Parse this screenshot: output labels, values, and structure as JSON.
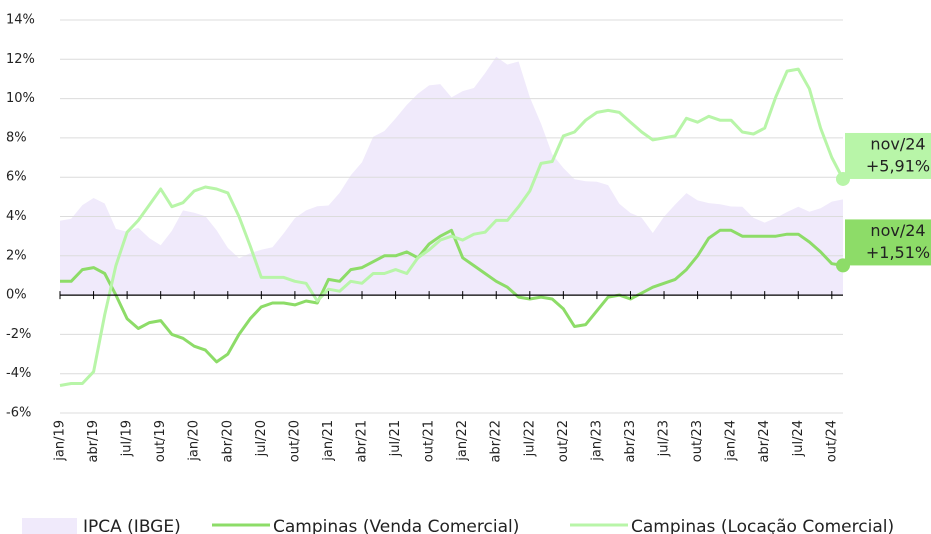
{
  "chart_data": {
    "type": "line",
    "categories": [
      "jan/19",
      null,
      null,
      "abr/19",
      null,
      null,
      "jul/19",
      null,
      null,
      "out/19",
      null,
      null,
      "jan/20",
      null,
      null,
      "abr/20",
      null,
      null,
      "jul/20",
      null,
      null,
      "out/20",
      null,
      null,
      "jan/21",
      null,
      null,
      "abr/21",
      null,
      null,
      "jul/21",
      null,
      null,
      "out/21",
      null,
      null,
      "jan/22",
      null,
      null,
      "abr/22",
      null,
      null,
      "jul/22",
      null,
      null,
      "out/22",
      null,
      null,
      "jan/23",
      null,
      null,
      "abr/23",
      null,
      null,
      "jul/23",
      null,
      null,
      "out/23",
      null,
      null,
      "jan/24",
      null,
      null,
      "abr/24",
      null,
      null,
      "jul/24",
      null,
      null,
      "out/24",
      null
    ],
    "series": [
      {
        "name": "IPCA (IBGE)",
        "kind": "area",
        "color": "#f0eafb",
        "values": [
          3.78,
          3.89,
          4.58,
          4.94,
          4.66,
          3.37,
          3.22,
          3.43,
          2.89,
          2.54,
          3.27,
          4.31,
          4.19,
          4.01,
          3.3,
          2.4,
          1.88,
          2.13,
          2.31,
          2.44,
          3.14,
          3.92,
          4.31,
          4.52,
          4.56,
          5.2,
          6.1,
          6.76,
          8.06,
          8.35,
          8.99,
          9.68,
          10.25,
          10.67,
          10.74,
          10.06,
          10.38,
          10.54,
          11.3,
          12.13,
          11.73,
          11.89,
          10.07,
          8.73,
          7.17,
          6.47,
          5.9,
          5.79,
          5.77,
          5.6,
          4.65,
          4.18,
          3.94,
          3.16,
          3.99,
          4.61,
          5.19,
          4.82,
          4.68,
          4.62,
          4.51,
          4.5,
          3.93,
          3.69,
          3.93,
          4.23,
          4.5,
          4.24,
          4.42,
          4.76,
          4.87
        ]
      },
      {
        "name": "Campinas (Venda Comercial)",
        "kind": "line",
        "color": "#8ddc68",
        "values": [
          0.7,
          0.7,
          1.3,
          1.4,
          1.1,
          0.0,
          -1.2,
          -1.7,
          -1.4,
          -1.3,
          -2.0,
          -2.2,
          -2.6,
          -2.8,
          -3.4,
          -3.0,
          -2.0,
          -1.2,
          -0.6,
          -0.4,
          -0.4,
          -0.5,
          -0.3,
          -0.4,
          0.8,
          0.7,
          1.3,
          1.4,
          1.7,
          2.0,
          2.0,
          2.2,
          1.9,
          2.6,
          3.0,
          3.3,
          1.9,
          1.5,
          1.1,
          0.7,
          0.4,
          -0.1,
          -0.2,
          -0.1,
          -0.2,
          -0.7,
          -1.6,
          -1.5,
          -0.8,
          -0.1,
          0.0,
          -0.2,
          0.1,
          0.4,
          0.6,
          0.8,
          1.3,
          2.0,
          2.9,
          3.3,
          3.3,
          3.0,
          3.0,
          3.0,
          3.0,
          3.1,
          3.1,
          2.7,
          2.2,
          1.6,
          1.51
        ]
      },
      {
        "name": "Campinas (Locação Comercial)",
        "kind": "line",
        "color": "#b8f5a8",
        "values": [
          -4.6,
          -4.5,
          -4.5,
          -3.9,
          -1.0,
          1.5,
          3.2,
          3.8,
          4.6,
          5.4,
          4.5,
          4.7,
          5.3,
          5.5,
          5.4,
          5.2,
          4.0,
          2.5,
          0.9,
          0.9,
          0.9,
          0.7,
          0.6,
          -0.3,
          0.3,
          0.2,
          0.7,
          0.6,
          1.1,
          1.1,
          1.3,
          1.1,
          1.9,
          2.3,
          2.8,
          3.0,
          2.8,
          3.1,
          3.2,
          3.8,
          3.8,
          4.5,
          5.3,
          6.7,
          6.8,
          8.1,
          8.3,
          8.9,
          9.3,
          9.4,
          9.3,
          8.8,
          8.3,
          7.9,
          8.0,
          8.1,
          9.0,
          8.8,
          9.1,
          8.9,
          8.9,
          8.3,
          8.2,
          8.5,
          10.1,
          11.4,
          11.5,
          10.5,
          8.5,
          7.0,
          5.91
        ]
      }
    ],
    "ylim": [
      -6,
      14
    ],
    "yticks": [
      {
        "value": -6,
        "label": "-6%"
      },
      {
        "value": -4,
        "label": "-4%"
      },
      {
        "value": -2,
        "label": "-2%"
      },
      {
        "value": 0,
        "label": "0%"
      },
      {
        "value": 2,
        "label": "2%"
      },
      {
        "value": 4,
        "label": "4%"
      },
      {
        "value": 6,
        "label": "6%"
      },
      {
        "value": 8,
        "label": "8%"
      },
      {
        "value": 10,
        "label": "10%"
      },
      {
        "value": 12,
        "label": "12%"
      },
      {
        "value": 14,
        "label": "14%"
      }
    ],
    "grid": true,
    "annotations": [
      {
        "series": 2,
        "lines": [
          "nov/24",
          "+5,91%"
        ]
      },
      {
        "series": 1,
        "lines": [
          "nov/24",
          "+1,51%"
        ]
      }
    ]
  }
}
